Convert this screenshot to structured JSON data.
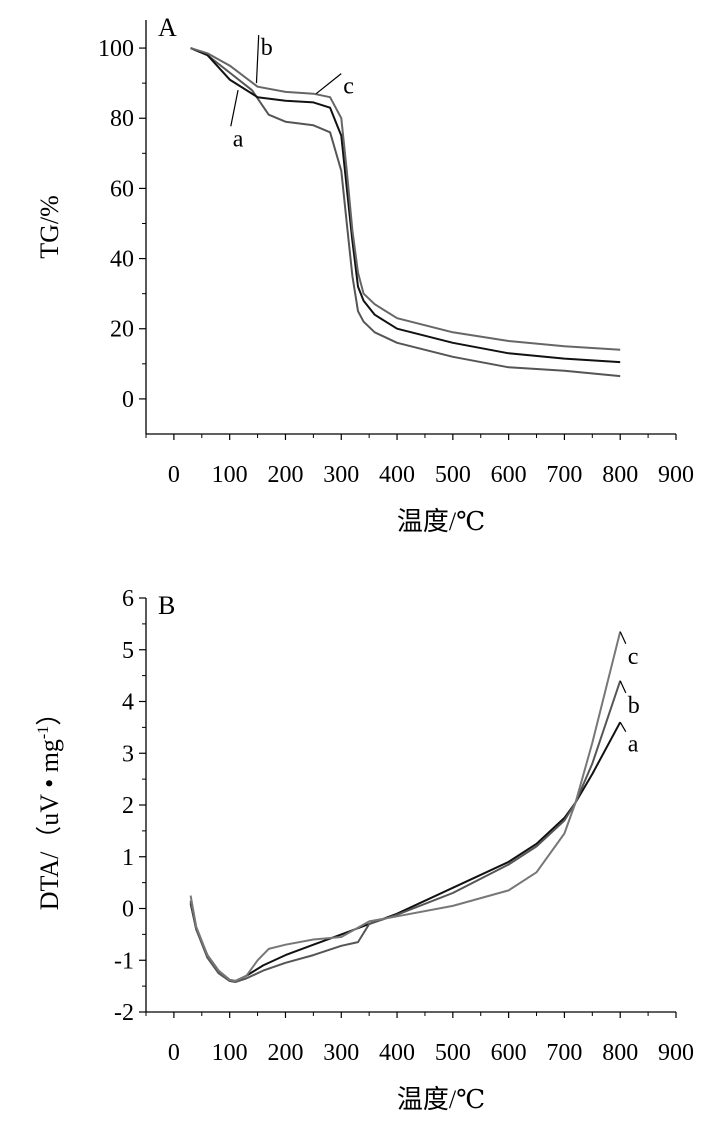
{
  "chart_data": [
    {
      "type": "line",
      "panel_label": "A",
      "xlabel": "温度/℃",
      "ylabel": "TG/%",
      "xlim": [
        -50,
        900
      ],
      "ylim": [
        -10,
        108
      ],
      "xticks": [
        0,
        100,
        200,
        300,
        400,
        500,
        600,
        700,
        800,
        900
      ],
      "xtick_labels": [
        "0",
        "100",
        "200",
        "300",
        "400",
        "500",
        "600",
        "700",
        "800",
        "900"
      ],
      "yticks": [
        0,
        20,
        40,
        60,
        80,
        100
      ],
      "ytick_labels": [
        "0",
        "20",
        "40",
        "60",
        "80",
        "100"
      ],
      "line_color": "#000000",
      "series": [
        {
          "name": "a",
          "color": "#555555",
          "x": [
            30,
            60,
            100,
            140,
            170,
            200,
            250,
            280,
            300,
            310,
            320,
            330,
            340,
            360,
            400,
            500,
            600,
            700,
            800
          ],
          "y": [
            100,
            98,
            93,
            88,
            81,
            79,
            78,
            76,
            65,
            50,
            35,
            25,
            22,
            19,
            16,
            12,
            9,
            8,
            6.5
          ]
        },
        {
          "name": "b",
          "color": "#111111",
          "x": [
            30,
            60,
            100,
            150,
            200,
            250,
            280,
            300,
            310,
            320,
            330,
            340,
            360,
            400,
            500,
            600,
            700,
            800
          ],
          "y": [
            100,
            98,
            91,
            86,
            85,
            84.5,
            83,
            75,
            60,
            45,
            32,
            28,
            24,
            20,
            16,
            13,
            11.5,
            10.5
          ]
        },
        {
          "name": "c",
          "color": "#666666",
          "x": [
            30,
            60,
            100,
            150,
            200,
            250,
            280,
            300,
            310,
            320,
            330,
            340,
            360,
            400,
            500,
            600,
            700,
            800
          ],
          "y": [
            100,
            98.5,
            95,
            89,
            87.5,
            87,
            86,
            80,
            65,
            48,
            36,
            30,
            27,
            23,
            19,
            16.5,
            15,
            14
          ]
        }
      ],
      "annotations": [
        {
          "text": "a",
          "anchor": [
            115,
            88
          ],
          "label_pos": [
            102,
            76
          ]
        },
        {
          "text": "b",
          "anchor": [
            148,
            90
          ],
          "label_pos": [
            152,
            102
          ]
        },
        {
          "text": "c",
          "anchor": [
            255,
            87
          ],
          "label_pos": [
            300,
            91
          ]
        }
      ]
    },
    {
      "type": "line",
      "panel_label": "B",
      "xlabel": "温度/℃",
      "ylabel": "DTA/（uV • mg",
      "ylabel_superscript": "-1",
      "ylabel_end": "）",
      "xlim": [
        -50,
        900
      ],
      "ylim": [
        -2,
        6
      ],
      "xticks": [
        0,
        100,
        200,
        300,
        400,
        500,
        600,
        700,
        800,
        900
      ],
      "xtick_labels": [
        "0",
        "100",
        "200",
        "300",
        "400",
        "500",
        "600",
        "700",
        "800",
        "900"
      ],
      "yticks": [
        -2,
        -1,
        0,
        1,
        2,
        3,
        4,
        5,
        6
      ],
      "ytick_labels": [
        "-2",
        "-1",
        "0",
        "1",
        "2",
        "3",
        "4",
        "5",
        "6"
      ],
      "line_color": "#000000",
      "series": [
        {
          "name": "a",
          "color": "#111111",
          "x": [
            30,
            40,
            60,
            80,
            100,
            110,
            130,
            160,
            200,
            250,
            300,
            350,
            400,
            500,
            600,
            650,
            700,
            720,
            750,
            800
          ],
          "y": [
            0.1,
            -0.4,
            -0.9,
            -1.2,
            -1.38,
            -1.4,
            -1.3,
            -1.1,
            -0.9,
            -0.7,
            -0.5,
            -0.3,
            -0.1,
            0.4,
            0.9,
            1.25,
            1.75,
            2.05,
            2.6,
            3.6
          ]
        },
        {
          "name": "b",
          "color": "#555555",
          "x": [
            30,
            40,
            60,
            80,
            100,
            110,
            130,
            160,
            200,
            250,
            300,
            330,
            350,
            400,
            500,
            600,
            650,
            700,
            720,
            750,
            800
          ],
          "y": [
            0.15,
            -0.4,
            -0.95,
            -1.25,
            -1.4,
            -1.42,
            -1.35,
            -1.2,
            -1.05,
            -0.9,
            -0.72,
            -0.65,
            -0.3,
            -0.12,
            0.3,
            0.85,
            1.2,
            1.7,
            2.05,
            2.8,
            4.4
          ]
        },
        {
          "name": "c",
          "color": "#777777",
          "x": [
            30,
            40,
            60,
            80,
            100,
            110,
            130,
            150,
            170,
            200,
            250,
            300,
            350,
            400,
            500,
            600,
            650,
            700,
            720,
            750,
            800
          ],
          "y": [
            0.25,
            -0.35,
            -0.9,
            -1.2,
            -1.38,
            -1.4,
            -1.3,
            -1.0,
            -0.78,
            -0.7,
            -0.6,
            -0.55,
            -0.25,
            -0.15,
            0.05,
            0.35,
            0.7,
            1.45,
            2.05,
            3.2,
            5.35
          ]
        }
      ],
      "annotations": [
        {
          "text": "a",
          "anchor": [
            800,
            3.6
          ],
          "label_pos": [
            810,
            3.3
          ]
        },
        {
          "text": "b",
          "anchor": [
            800,
            4.4
          ],
          "label_pos": [
            810,
            4.05
          ]
        },
        {
          "text": "c",
          "anchor": [
            800,
            5.35
          ],
          "label_pos": [
            810,
            5.0
          ]
        }
      ]
    }
  ]
}
